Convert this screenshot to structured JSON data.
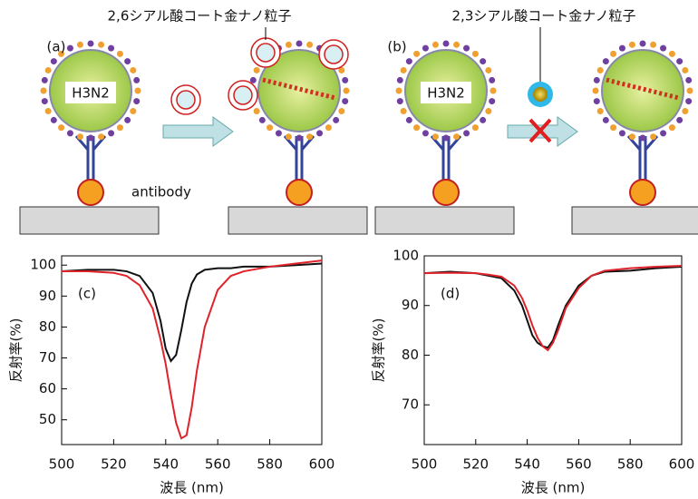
{
  "diagram": {
    "labels": [
      "2,6シアル酸コート金ナノ粒子",
      "2,3シアル酸コート金ナノ粒子"
    ],
    "panels": [
      "(a)",
      "(b)"
    ],
    "virus": "H3N2",
    "antibody": "antibody"
  },
  "chart_data": [
    {
      "type": "line",
      "panel_label": "(c)",
      "x_label": "波長 (nm)",
      "y_label": "反射率(%)",
      "xlim": [
        500,
        600
      ],
      "xticks": [
        500,
        520,
        540,
        560,
        580,
        600
      ],
      "ylim": [
        42,
        103
      ],
      "yticks": [
        50,
        60,
        70,
        80,
        90,
        100
      ],
      "x": [
        500,
        510,
        520,
        525,
        530,
        535,
        538,
        540,
        542,
        544,
        546,
        548,
        550,
        552,
        555,
        560,
        565,
        570,
        580,
        590,
        600
      ],
      "series": [
        {
          "color": "#111111",
          "values": [
            98,
            98.5,
            98.5,
            98,
            96.5,
            91,
            82,
            73,
            69,
            71,
            79,
            88,
            94,
            97,
            98.5,
            99,
            99,
            99.5,
            99.5,
            100,
            100.5
          ]
        },
        {
          "color": "#e0222a",
          "values": [
            98,
            98,
            97.5,
            96.5,
            93.5,
            86,
            76,
            68,
            58,
            49,
            44,
            45,
            54,
            66,
            80,
            92,
            96.5,
            98,
            99.5,
            100.5,
            101.5
          ]
        }
      ]
    },
    {
      "type": "line",
      "panel_label": "(d)",
      "x_label": "波長 (nm)",
      "y_label": "反射率(%)",
      "xlim": [
        500,
        600
      ],
      "xticks": [
        500,
        520,
        540,
        560,
        580,
        600
      ],
      "ylim": [
        62,
        100
      ],
      "yticks": [
        70,
        80,
        90,
        100
      ],
      "x": [
        500,
        510,
        520,
        525,
        530,
        535,
        538,
        540,
        542,
        544,
        546,
        548,
        550,
        552,
        555,
        560,
        565,
        570,
        580,
        590,
        600
      ],
      "series": [
        {
          "color": "#111111",
          "values": [
            96.5,
            96.8,
            96.5,
            96,
            95.5,
            93,
            90,
            87,
            84,
            82.5,
            81.8,
            81.5,
            83,
            86,
            90,
            94,
            96,
            96.8,
            97,
            97.5,
            97.8
          ]
        },
        {
          "color": "#e0222a",
          "values": [
            96.5,
            96.6,
            96.5,
            96.2,
            95.8,
            94,
            91.5,
            89,
            86,
            83.5,
            81.8,
            81,
            82.5,
            85,
            89.5,
            93.5,
            96,
            97,
            97.5,
            97.8,
            98
          ]
        }
      ]
    }
  ]
}
